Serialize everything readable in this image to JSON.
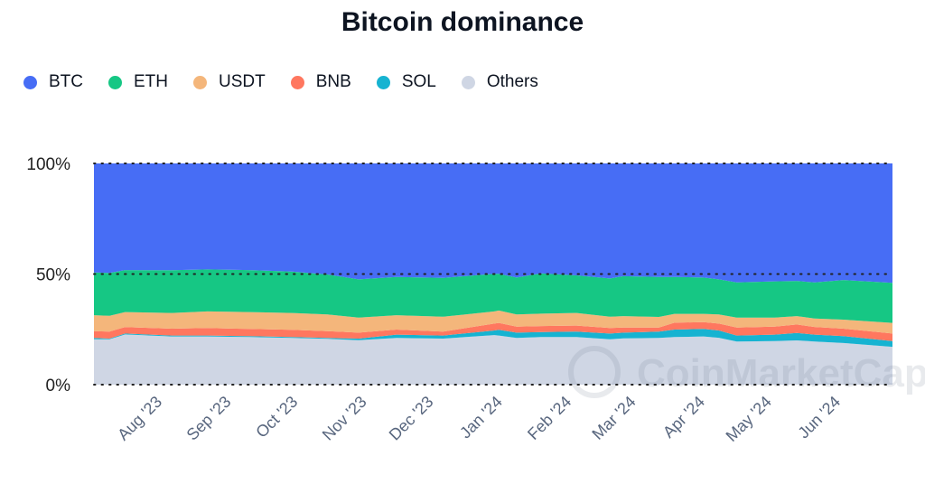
{
  "chart_data": {
    "type": "area",
    "stacked": true,
    "percent": true,
    "title": "Bitcoin dominance",
    "legend_position": "top-left",
    "grid": "dotted horizontal at 0%, 50%, 100%",
    "ylim": [
      0,
      100
    ],
    "y_ticks": [
      "0%",
      "50%",
      "100%"
    ],
    "x_ticks": [
      {
        "date": "2023-08-01",
        "label": "Aug '23"
      },
      {
        "date": "2023-09-01",
        "label": "Sep '23"
      },
      {
        "date": "2023-10-01",
        "label": "Oct '23"
      },
      {
        "date": "2023-11-01",
        "label": "Nov '23"
      },
      {
        "date": "2023-12-01",
        "label": "Dec '23"
      },
      {
        "date": "2024-01-01",
        "label": "Jan '24"
      },
      {
        "date": "2024-02-01",
        "label": "Feb '24"
      },
      {
        "date": "2024-03-01",
        "label": "Mar '24"
      },
      {
        "date": "2024-04-01",
        "label": "Apr '24"
      },
      {
        "date": "2024-05-01",
        "label": "May '24"
      },
      {
        "date": "2024-06-01",
        "label": "Jun '24"
      }
    ],
    "xlim": [
      "2023-07-01",
      "2024-06-24"
    ],
    "x": [
      "2023-07-01",
      "2023-07-08",
      "2023-07-15",
      "2023-08-05",
      "2023-08-21",
      "2023-09-09",
      "2023-09-28",
      "2023-10-14",
      "2023-10-28",
      "2023-11-14",
      "2023-12-05",
      "2023-12-28",
      "2023-12-30",
      "2024-01-07",
      "2024-01-18",
      "2024-02-03",
      "2024-02-18",
      "2024-02-24",
      "2024-03-11",
      "2024-03-18",
      "2024-03-31",
      "2024-04-07",
      "2024-04-15",
      "2024-05-02",
      "2024-05-12",
      "2024-05-20",
      "2024-06-02",
      "2024-06-24"
    ],
    "series": [
      {
        "name": "Others",
        "color": "#cfd6e4",
        "values": [
          20.5,
          20.5,
          22.7,
          21.8,
          21.8,
          21.5,
          21.1,
          20.7,
          20.1,
          21.1,
          20.8,
          22.4,
          22.2,
          21.1,
          21.5,
          21.5,
          20.5,
          20.9,
          21.1,
          21.5,
          21.8,
          21.2,
          19.5,
          19.7,
          20.0,
          19.5,
          18.8,
          17.1
        ]
      },
      {
        "name": "SOL",
        "color": "#16b3d1",
        "values": [
          0.6,
          0.3,
          0.4,
          0.4,
          0.4,
          0.4,
          0.4,
          0.4,
          0.7,
          1.5,
          1.4,
          2.1,
          2.6,
          2.4,
          2.3,
          2.5,
          2.6,
          2.6,
          2.9,
          3.4,
          3.4,
          3.3,
          2.7,
          2.9,
          3.4,
          3.1,
          3.1,
          2.6
        ]
      },
      {
        "name": "BNB",
        "color": "#ff775f",
        "values": [
          3.1,
          3.2,
          2.9,
          3.1,
          3.4,
          3.3,
          3.3,
          3.1,
          2.7,
          2.3,
          1.8,
          3.1,
          3.1,
          2.7,
          2.7,
          2.7,
          2.5,
          2.3,
          1.8,
          3.1,
          3.1,
          3.1,
          3.6,
          3.6,
          3.8,
          3.5,
          3.4,
          3.4
        ]
      },
      {
        "name": "USDT",
        "color": "#f4b67b",
        "values": [
          7.2,
          7.1,
          6.8,
          7.1,
          7.5,
          7.6,
          7.6,
          7.5,
          6.8,
          6.5,
          6.7,
          5.5,
          5.6,
          5.5,
          5.6,
          5.7,
          5.1,
          5.2,
          4.8,
          4.0,
          3.7,
          4.1,
          4.5,
          4.1,
          3.8,
          3.8,
          4.1,
          4.8
        ]
      },
      {
        "name": "ETH",
        "color": "#16c784",
        "values": [
          19.3,
          19.4,
          19.0,
          19.3,
          19.0,
          19.0,
          18.7,
          18.1,
          17.3,
          17.3,
          17.6,
          17.0,
          16.6,
          16.7,
          18.2,
          17.0,
          17.3,
          18.0,
          18.1,
          16.7,
          16.4,
          15.9,
          15.9,
          16.4,
          15.9,
          16.3,
          17.9,
          18.1
        ]
      },
      {
        "name": "BTC",
        "color": "#476df5",
        "values": [
          49.3,
          49.5,
          48.2,
          48.3,
          47.9,
          48.2,
          48.9,
          50.2,
          52.4,
          51.3,
          51.7,
          49.9,
          49.9,
          51.6,
          49.7,
          50.6,
          52.0,
          51.0,
          51.3,
          51.3,
          51.6,
          52.4,
          53.8,
          53.3,
          53.1,
          53.8,
          52.7,
          54.0
        ]
      }
    ],
    "legend_order": [
      "BTC",
      "ETH",
      "USDT",
      "BNB",
      "SOL",
      "Others"
    ],
    "watermark": "CoinMarketCap"
  }
}
